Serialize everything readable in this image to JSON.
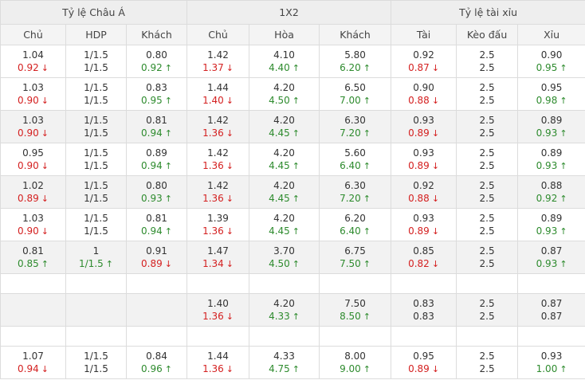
{
  "header": {
    "groups": [
      "Tỷ lệ Châu Á",
      "1X2",
      "Tỷ lệ tài xỉu"
    ],
    "columns": [
      "Chủ",
      "HDP",
      "Khách",
      "Chủ",
      "Hòa",
      "Khách",
      "Tài",
      "Kèo đấu",
      "Xỉu"
    ]
  },
  "rows": [
    {
      "shade": false,
      "cells": [
        {
          "top": "1.04",
          "bot": "0.92",
          "dir": "down"
        },
        {
          "top": "1/1.5",
          "bot": "1/1.5",
          "dir": ""
        },
        {
          "top": "0.80",
          "bot": "0.92",
          "dir": "up"
        },
        {
          "top": "1.42",
          "bot": "1.37",
          "dir": "down"
        },
        {
          "top": "4.10",
          "bot": "4.40",
          "dir": "up"
        },
        {
          "top": "5.80",
          "bot": "6.20",
          "dir": "up"
        },
        {
          "top": "0.92",
          "bot": "0.87",
          "dir": "down"
        },
        {
          "top": "2.5",
          "bot": "2.5",
          "dir": ""
        },
        {
          "top": "0.90",
          "bot": "0.95",
          "dir": "up"
        }
      ]
    },
    {
      "shade": false,
      "cells": [
        {
          "top": "1.03",
          "bot": "0.90",
          "dir": "down"
        },
        {
          "top": "1/1.5",
          "bot": "1/1.5",
          "dir": ""
        },
        {
          "top": "0.83",
          "bot": "0.95",
          "dir": "up"
        },
        {
          "top": "1.44",
          "bot": "1.40",
          "dir": "down"
        },
        {
          "top": "4.20",
          "bot": "4.50",
          "dir": "up"
        },
        {
          "top": "6.50",
          "bot": "7.00",
          "dir": "up"
        },
        {
          "top": "0.90",
          "bot": "0.88",
          "dir": "down"
        },
        {
          "top": "2.5",
          "bot": "2.5",
          "dir": ""
        },
        {
          "top": "0.95",
          "bot": "0.98",
          "dir": "up"
        }
      ]
    },
    {
      "shade": true,
      "cells": [
        {
          "top": "1.03",
          "bot": "0.90",
          "dir": "down"
        },
        {
          "top": "1/1.5",
          "bot": "1/1.5",
          "dir": ""
        },
        {
          "top": "0.81",
          "bot": "0.94",
          "dir": "up"
        },
        {
          "top": "1.42",
          "bot": "1.36",
          "dir": "down"
        },
        {
          "top": "4.20",
          "bot": "4.45",
          "dir": "up"
        },
        {
          "top": "6.30",
          "bot": "7.20",
          "dir": "up"
        },
        {
          "top": "0.93",
          "bot": "0.89",
          "dir": "down"
        },
        {
          "top": "2.5",
          "bot": "2.5",
          "dir": ""
        },
        {
          "top": "0.89",
          "bot": "0.93",
          "dir": "up"
        }
      ]
    },
    {
      "shade": false,
      "cells": [
        {
          "top": "0.95",
          "bot": "0.90",
          "dir": "down"
        },
        {
          "top": "1/1.5",
          "bot": "1/1.5",
          "dir": ""
        },
        {
          "top": "0.89",
          "bot": "0.94",
          "dir": "up"
        },
        {
          "top": "1.42",
          "bot": "1.36",
          "dir": "down"
        },
        {
          "top": "4.20",
          "bot": "4.45",
          "dir": "up"
        },
        {
          "top": "5.60",
          "bot": "6.40",
          "dir": "up"
        },
        {
          "top": "0.93",
          "bot": "0.89",
          "dir": "down"
        },
        {
          "top": "2.5",
          "bot": "2.5",
          "dir": ""
        },
        {
          "top": "0.89",
          "bot": "0.93",
          "dir": "up"
        }
      ]
    },
    {
      "shade": true,
      "cells": [
        {
          "top": "1.02",
          "bot": "0.89",
          "dir": "down"
        },
        {
          "top": "1/1.5",
          "bot": "1/1.5",
          "dir": ""
        },
        {
          "top": "0.80",
          "bot": "0.93",
          "dir": "up"
        },
        {
          "top": "1.42",
          "bot": "1.36",
          "dir": "down"
        },
        {
          "top": "4.20",
          "bot": "4.45",
          "dir": "up"
        },
        {
          "top": "6.30",
          "bot": "7.20",
          "dir": "up"
        },
        {
          "top": "0.92",
          "bot": "0.88",
          "dir": "down"
        },
        {
          "top": "2.5",
          "bot": "2.5",
          "dir": ""
        },
        {
          "top": "0.88",
          "bot": "0.92",
          "dir": "up"
        }
      ]
    },
    {
      "shade": false,
      "cells": [
        {
          "top": "1.03",
          "bot": "0.90",
          "dir": "down"
        },
        {
          "top": "1/1.5",
          "bot": "1/1.5",
          "dir": ""
        },
        {
          "top": "0.81",
          "bot": "0.94",
          "dir": "up"
        },
        {
          "top": "1.39",
          "bot": "1.36",
          "dir": "down"
        },
        {
          "top": "4.20",
          "bot": "4.45",
          "dir": "up"
        },
        {
          "top": "6.20",
          "bot": "6.40",
          "dir": "up"
        },
        {
          "top": "0.93",
          "bot": "0.89",
          "dir": "down"
        },
        {
          "top": "2.5",
          "bot": "2.5",
          "dir": ""
        },
        {
          "top": "0.89",
          "bot": "0.93",
          "dir": "up"
        }
      ]
    },
    {
      "shade": true,
      "cells": [
        {
          "top": "0.81",
          "bot": "0.85",
          "dir": "up"
        },
        {
          "top": "1",
          "bot": "1/1.5",
          "dir": "up"
        },
        {
          "top": "0.91",
          "bot": "0.89",
          "dir": "down"
        },
        {
          "top": "1.47",
          "bot": "1.34",
          "dir": "down"
        },
        {
          "top": "3.70",
          "bot": "4.50",
          "dir": "up"
        },
        {
          "top": "6.75",
          "bot": "7.50",
          "dir": "up"
        },
        {
          "top": "0.85",
          "bot": "0.82",
          "dir": "down"
        },
        {
          "top": "2.5",
          "bot": "2.5",
          "dir": ""
        },
        {
          "top": "0.87",
          "bot": "0.93",
          "dir": "up"
        }
      ]
    },
    {
      "empty": true,
      "shade": false
    },
    {
      "shade": true,
      "cells": [
        {
          "top": "",
          "bot": "",
          "dir": ""
        },
        {
          "top": "",
          "bot": "",
          "dir": ""
        },
        {
          "top": "",
          "bot": "",
          "dir": ""
        },
        {
          "top": "1.40",
          "bot": "1.36",
          "dir": "down"
        },
        {
          "top": "4.20",
          "bot": "4.33",
          "dir": "up"
        },
        {
          "top": "7.50",
          "bot": "8.50",
          "dir": "up"
        },
        {
          "top": "0.83",
          "bot": "0.83",
          "dir": ""
        },
        {
          "top": "2.5",
          "bot": "2.5",
          "dir": ""
        },
        {
          "top": "0.87",
          "bot": "0.87",
          "dir": ""
        }
      ]
    },
    {
      "empty": true,
      "shade": false
    },
    {
      "shade": false,
      "cells": [
        {
          "top": "1.07",
          "bot": "0.94",
          "dir": "down"
        },
        {
          "top": "1/1.5",
          "bot": "1/1.5",
          "dir": ""
        },
        {
          "top": "0.84",
          "bot": "0.96",
          "dir": "up"
        },
        {
          "top": "1.44",
          "bot": "1.36",
          "dir": "down"
        },
        {
          "top": "4.33",
          "bot": "4.75",
          "dir": "up"
        },
        {
          "top": "8.00",
          "bot": "9.00",
          "dir": "up"
        },
        {
          "top": "0.95",
          "bot": "0.89",
          "dir": "down"
        },
        {
          "top": "2.5",
          "bot": "2.5",
          "dir": ""
        },
        {
          "top": "0.93",
          "bot": "1.00",
          "dir": "up"
        }
      ]
    }
  ],
  "icons": {
    "up": "arrow-up-icon",
    "down": "arrow-down-icon"
  },
  "colors": {
    "up": "#2e8b2e",
    "down": "#d42020",
    "header_bg": "#eeeeee",
    "shade_bg": "#f2f2f2"
  }
}
